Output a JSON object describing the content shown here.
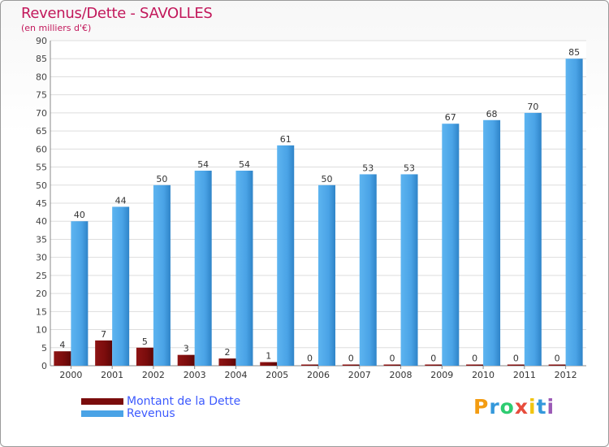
{
  "chart_data": {
    "type": "bar",
    "title": "Revenus/Dette - SAVOLLES",
    "subtitle": "(en milliers d'€)",
    "categories": [
      "2000",
      "2001",
      "2002",
      "2003",
      "2004",
      "2005",
      "2006",
      "2007",
      "2008",
      "2009",
      "2010",
      "2011",
      "2012"
    ],
    "series": [
      {
        "name": "Montant de la Dette",
        "color": "#7a0c0c",
        "values": [
          4,
          7,
          5,
          3,
          2,
          1,
          0,
          0,
          0,
          0,
          0,
          0,
          0
        ]
      },
      {
        "name": "Revenus",
        "color": "#4aa3e6",
        "values": [
          40,
          44,
          50,
          54,
          54,
          61,
          50,
          53,
          53,
          67,
          68,
          70,
          85
        ]
      }
    ],
    "ylim": [
      0,
      90
    ],
    "yticks": [
      0,
      5,
      10,
      15,
      20,
      25,
      30,
      35,
      40,
      45,
      50,
      55,
      60,
      65,
      70,
      75,
      80,
      85,
      90
    ],
    "grid": true,
    "legend": "bottom-left"
  },
  "brand": {
    "letters": [
      "P",
      "r",
      "o",
      "x",
      "i",
      "t",
      "i"
    ],
    "colors": [
      "#f39c12",
      "#3498db",
      "#2ecc71",
      "#e74c3c",
      "#f1c40f",
      "#3498db",
      "#9b59b6"
    ]
  }
}
